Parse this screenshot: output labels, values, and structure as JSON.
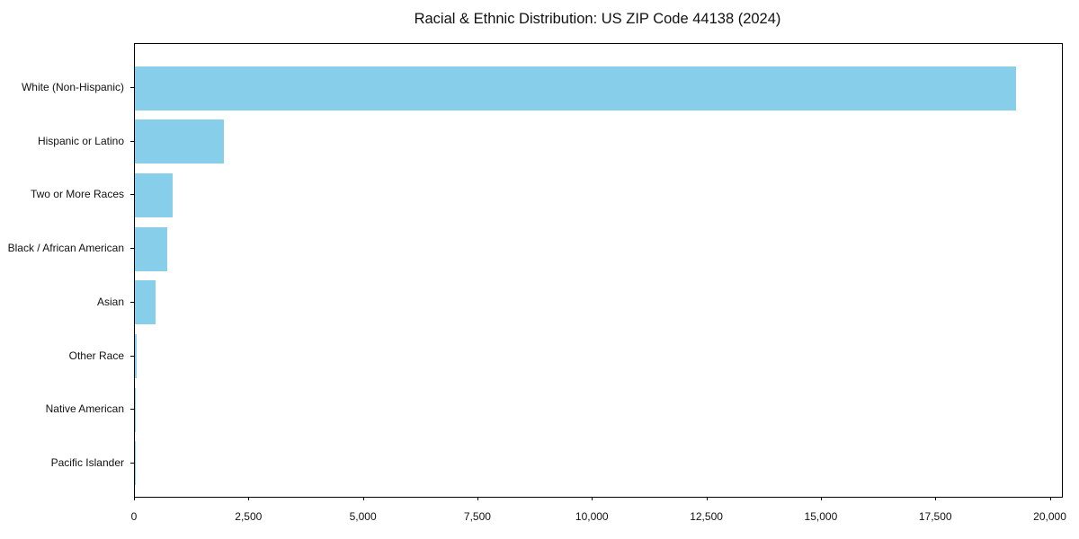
{
  "colors": {
    "bar": "#87CEEB",
    "frame": "#000000",
    "text": "#111111",
    "background": "#ffffff"
  },
  "chart_data": {
    "type": "bar",
    "orientation": "horizontal",
    "title": "Racial & Ethnic Distribution: US ZIP Code 44138 (2024)",
    "xlabel": "",
    "ylabel": "",
    "categories": [
      "White (Non-Hispanic)",
      "Hispanic or Latino",
      "Two or More Races",
      "Black / African American",
      "Asian",
      "Other Race",
      "Native American",
      "Pacific Islander"
    ],
    "values": [
      19250,
      1950,
      820,
      700,
      450,
      40,
      18,
      7
    ],
    "xlim": [
      0,
      20245
    ],
    "x_ticks": [
      0,
      2500,
      5000,
      7500,
      10000,
      12500,
      15000,
      17500,
      20000
    ],
    "x_tick_labels": [
      "0",
      "2,500",
      "5,000",
      "7,500",
      "10,000",
      "12,500",
      "15,000",
      "17,500",
      "20,000"
    ],
    "bar_color": "#87CEEB",
    "grid": false,
    "legend": false
  }
}
